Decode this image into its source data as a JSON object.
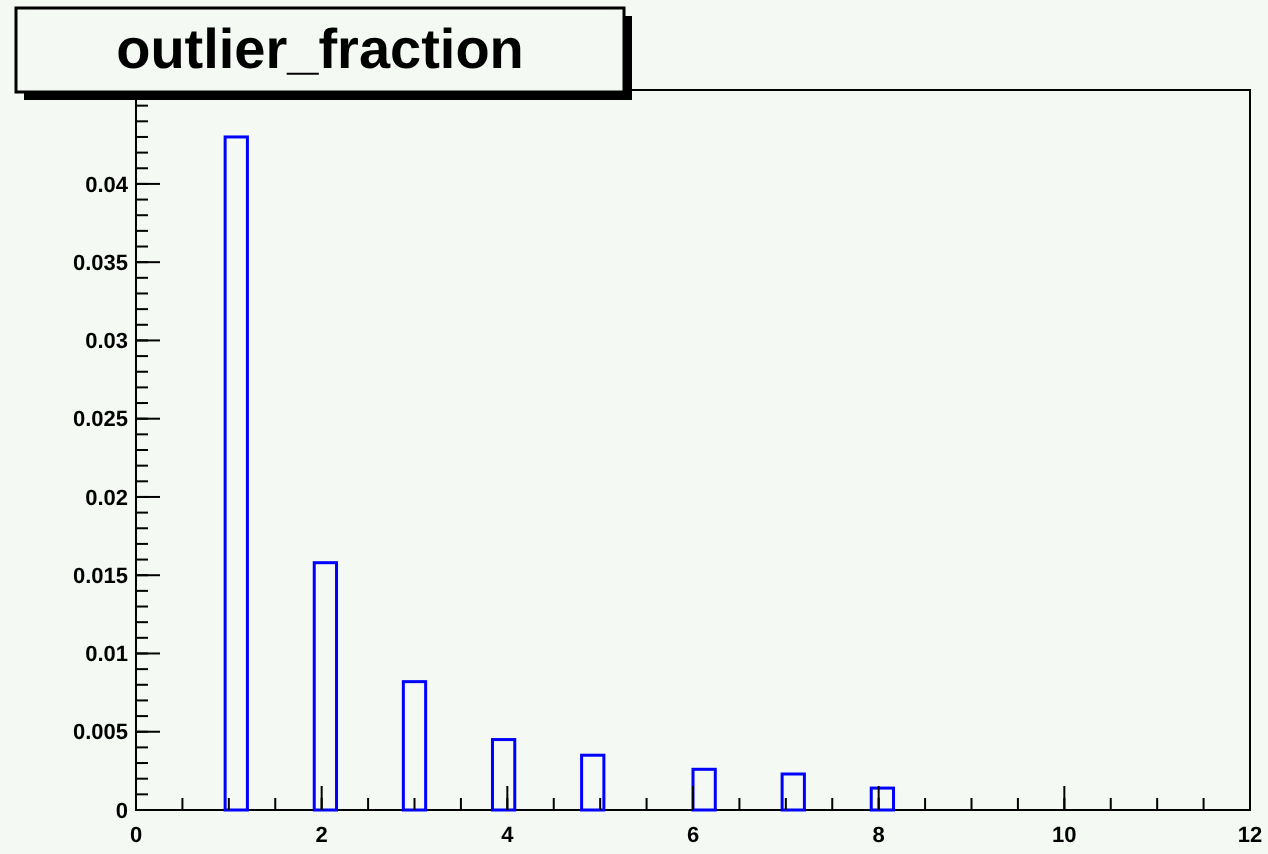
{
  "chart_data": {
    "type": "histogram",
    "title": "outlier_fraction",
    "color": "#0000ff",
    "bins": [
      0,
      0.24,
      0.48,
      0.72,
      0.96,
      1.2,
      1.44,
      1.68,
      1.92,
      2.16,
      2.4,
      2.64,
      2.88,
      3.12,
      3.36,
      3.6,
      3.84,
      4.08,
      4.32,
      4.56,
      4.8,
      5.04,
      5.28,
      5.52,
      5.76,
      6.0,
      6.24,
      6.48,
      6.72,
      6.96,
      7.2,
      7.44,
      7.68,
      7.92,
      8.16,
      8.4,
      8.64,
      8.88,
      9.12,
      9.36,
      9.6,
      9.84,
      10.08,
      10.32,
      10.56,
      10.8,
      11.04,
      11.28,
      11.52,
      11.76,
      12
    ],
    "values": [
      0,
      0,
      0,
      0,
      0.043,
      0,
      0,
      0,
      0.0158,
      0,
      0,
      0,
      0.0082,
      0,
      0,
      0,
      0.0045,
      0,
      0,
      0,
      0.0035,
      0,
      0,
      0,
      0,
      0.0026,
      0,
      0,
      0,
      0.0023,
      0,
      0,
      0,
      0.0014,
      0,
      0,
      0,
      0,
      0,
      0,
      0,
      0,
      0,
      0,
      0,
      0,
      0,
      0,
      0,
      0
    ],
    "xlim": [
      0,
      12
    ],
    "xticks": [
      0,
      2,
      4,
      6,
      8,
      10,
      12
    ],
    "ylim": [
      0,
      0.046
    ],
    "yticks": [
      0,
      0.005,
      0.01,
      0.015,
      0.02,
      0.025,
      0.03,
      0.035,
      0.04
    ]
  }
}
